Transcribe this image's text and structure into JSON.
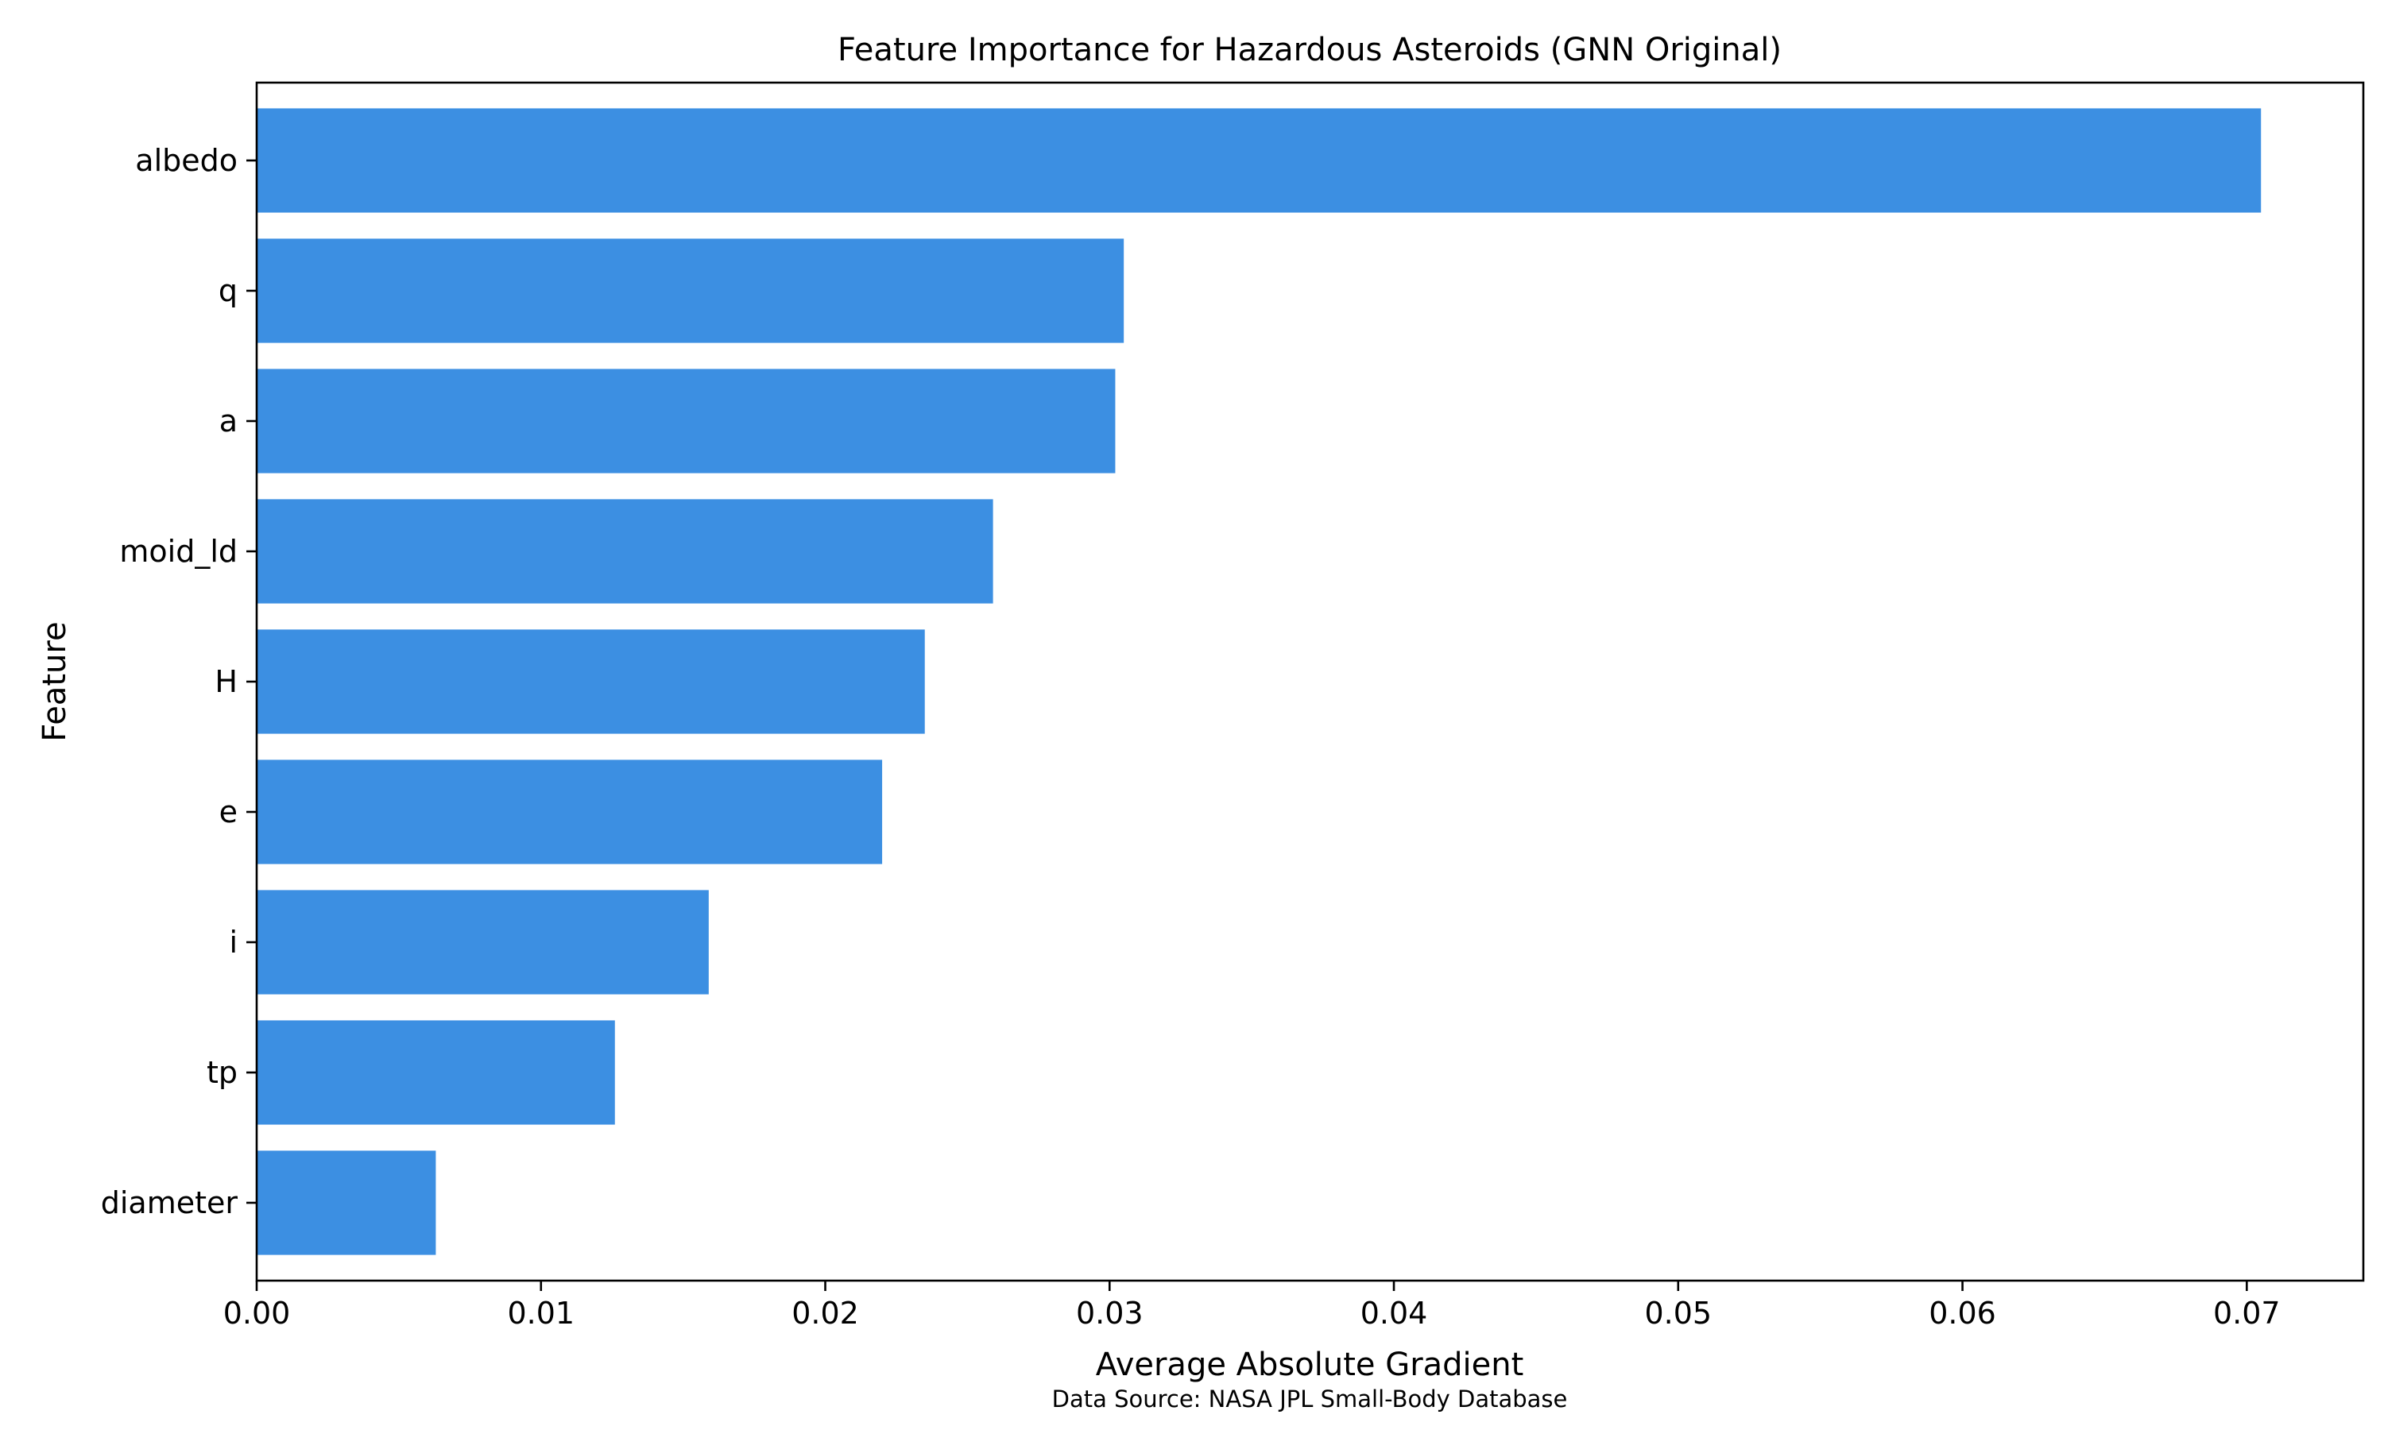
{
  "chart_data": {
    "type": "bar",
    "orientation": "horizontal",
    "title": "Feature Importance for Hazardous Asteroids (GNN Original)",
    "xlabel": "Average Absolute Gradient",
    "ylabel": "Feature",
    "source_note": "Data Source: NASA JPL Small-Body Database",
    "categories": [
      "albedo",
      "q",
      "a",
      "moid_ld",
      "H",
      "e",
      "i",
      "tp",
      "diameter"
    ],
    "values": [
      0.0705,
      0.0305,
      0.0302,
      0.0259,
      0.0235,
      0.022,
      0.0159,
      0.0126,
      0.0063
    ],
    "xlim": [
      0,
      0.0741
    ],
    "xticks": [
      0.0,
      0.01,
      0.02,
      0.03,
      0.04,
      0.05,
      0.06,
      0.07
    ],
    "xtick_labels": [
      "0.00",
      "0.01",
      "0.02",
      "0.03",
      "0.04",
      "0.05",
      "0.06",
      "0.07"
    ],
    "bar_color": "#3c8fe2",
    "grid": false,
    "legend": "none"
  }
}
